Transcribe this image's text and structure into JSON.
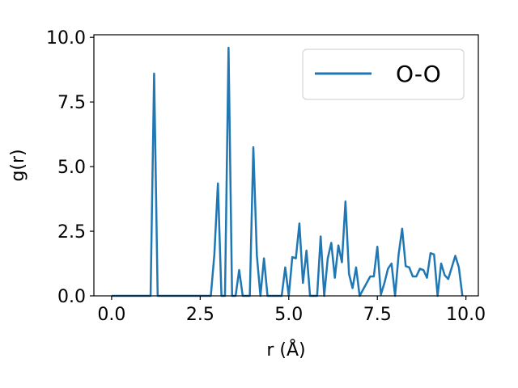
{
  "chart_data": {
    "type": "line",
    "xlabel": "r (Å)",
    "ylabel": "g(r)",
    "xlim": [
      -0.5,
      10.35
    ],
    "ylim": [
      0,
      10.1
    ],
    "xticks": [
      0.0,
      2.5,
      5.0,
      7.5,
      10.0
    ],
    "xtick_labels": [
      "0.0",
      "2.5",
      "5.0",
      "7.5",
      "10.0"
    ],
    "yticks": [
      0.0,
      2.5,
      5.0,
      7.5,
      10.0
    ],
    "ytick_labels": [
      "0.0",
      "2.5",
      "5.0",
      "7.5",
      "10.0"
    ],
    "grid": false,
    "legend_position": "top-right",
    "series": [
      {
        "name": "O-O",
        "color": "#1f77b4",
        "x": [
          0.0,
          1.1,
          1.2,
          1.3,
          2.8,
          2.9,
          3.0,
          3.1,
          3.2,
          3.3,
          3.4,
          3.5,
          3.6,
          3.7,
          3.8,
          3.9,
          4.0,
          4.1,
          4.2,
          4.3,
          4.4,
          4.5,
          4.6,
          4.7,
          4.8,
          4.9,
          5.0,
          5.1,
          5.2,
          5.3,
          5.4,
          5.5,
          5.6,
          5.7,
          5.8,
          5.9,
          6.0,
          6.1,
          6.2,
          6.3,
          6.4,
          6.5,
          6.6,
          6.7,
          6.8,
          6.9,
          7.0,
          7.1,
          7.2,
          7.3,
          7.4,
          7.5,
          7.6,
          7.7,
          7.8,
          7.9,
          8.0,
          8.1,
          8.2,
          8.3,
          8.4,
          8.5,
          8.6,
          8.7,
          8.8,
          8.9,
          9.0,
          9.1,
          9.2,
          9.3,
          9.4,
          9.5,
          9.6,
          9.7,
          9.8,
          9.9
        ],
        "y": [
          0.0,
          0.0,
          8.6,
          0.0,
          0.0,
          1.6,
          4.35,
          0.0,
          0.0,
          9.6,
          0.0,
          0.0,
          1.0,
          0.0,
          0.0,
          0.0,
          5.75,
          1.55,
          0.0,
          1.45,
          0.0,
          0.0,
          0.0,
          0.0,
          0.0,
          1.1,
          0.0,
          1.5,
          1.45,
          2.8,
          0.5,
          1.75,
          0.0,
          0.0,
          0.0,
          2.3,
          0.0,
          1.45,
          2.05,
          0.7,
          1.95,
          1.3,
          3.65,
          0.85,
          0.3,
          1.1,
          0.0,
          0.25,
          0.5,
          0.75,
          0.75,
          1.9,
          0.05,
          0.5,
          1.05,
          1.25,
          0.0,
          1.6,
          2.6,
          1.15,
          1.1,
          0.75,
          0.75,
          1.05,
          1.0,
          0.7,
          1.65,
          1.6,
          0.0,
          1.25,
          0.8,
          0.65,
          1.1,
          1.55,
          1.1,
          0.0
        ]
      }
    ]
  }
}
